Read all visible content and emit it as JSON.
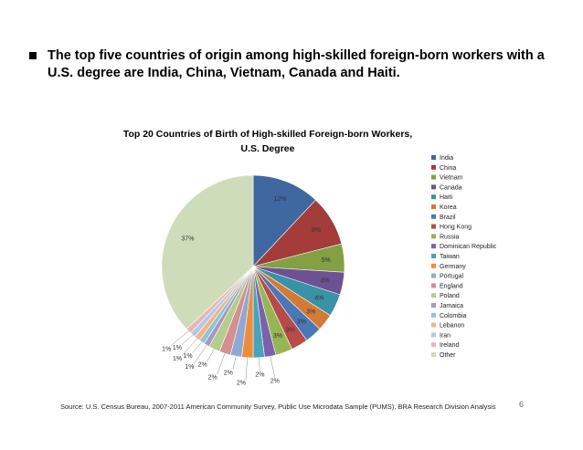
{
  "slide": {
    "bullet_text": "The top five countries of origin among high-skilled foreign-born workers with a U.S. degree are India, China, Vietnam, Canada and Haiti.",
    "source": "Source: U.S. Census Bureau, 2007-2011 American Community Survey, Public Use Microdata Sample (PUMS), BRA Research Division Analysis",
    "page_number": "6"
  },
  "chart_data": {
    "type": "pie",
    "title_line1": "Top 20 Countries of Birth of High-skilled Foreign-born Workers,",
    "title_line2": "U.S. Degree",
    "legend_position": "right",
    "slices": [
      {
        "label": "India",
        "value": 12,
        "text": "12%",
        "color": "#3f67a0"
      },
      {
        "label": "China",
        "value": 9,
        "text": "9%",
        "color": "#a43c3a"
      },
      {
        "label": "Vietnam",
        "value": 5,
        "text": "5%",
        "color": "#83a044"
      },
      {
        "label": "Canada",
        "value": 4,
        "text": "4%",
        "color": "#6d5193"
      },
      {
        "label": "Haiti",
        "value": 4,
        "text": "4%",
        "color": "#3a92a6"
      },
      {
        "label": "Korea",
        "value": 3,
        "text": "3%",
        "color": "#d57a34"
      },
      {
        "label": "Brazil",
        "value": 3,
        "text": "3%",
        "color": "#4a78b6"
      },
      {
        "label": "Hong Kong",
        "value": 3,
        "text": "3%",
        "color": "#b84b49"
      },
      {
        "label": "Russia",
        "value": 3,
        "text": "3%",
        "color": "#95b653"
      },
      {
        "label": "Dominican Republic",
        "value": 2,
        "text": "2%",
        "color": "#7d61a8"
      },
      {
        "label": "Taiwan",
        "value": 2,
        "text": "2%",
        "color": "#4aa4b9"
      },
      {
        "label": "Germany",
        "value": 2,
        "text": "2%",
        "color": "#ee8c3c"
      },
      {
        "label": "Portugal",
        "value": 2,
        "text": "2%",
        "color": "#8ea9d3"
      },
      {
        "label": "England",
        "value": 2,
        "text": "2%",
        "color": "#d48f8e"
      },
      {
        "label": "Poland",
        "value": 2,
        "text": "2%",
        "color": "#b6cc8d"
      },
      {
        "label": "Jamaica",
        "value": 1,
        "text": "1%",
        "color": "#a797c3"
      },
      {
        "label": "Colombia",
        "value": 1,
        "text": "1%",
        "color": "#8fc4d3"
      },
      {
        "label": "Lebanon",
        "value": 1,
        "text": "1%",
        "color": "#f3b486"
      },
      {
        "label": "Iran",
        "value": 1,
        "text": "1%",
        "color": "#b8c8e4"
      },
      {
        "label": "Ireland",
        "value": 1,
        "text": "1%",
        "color": "#e3b9b8"
      },
      {
        "label": "Other",
        "value": 37,
        "text": "37%",
        "color": "#cfdcb9"
      }
    ]
  }
}
